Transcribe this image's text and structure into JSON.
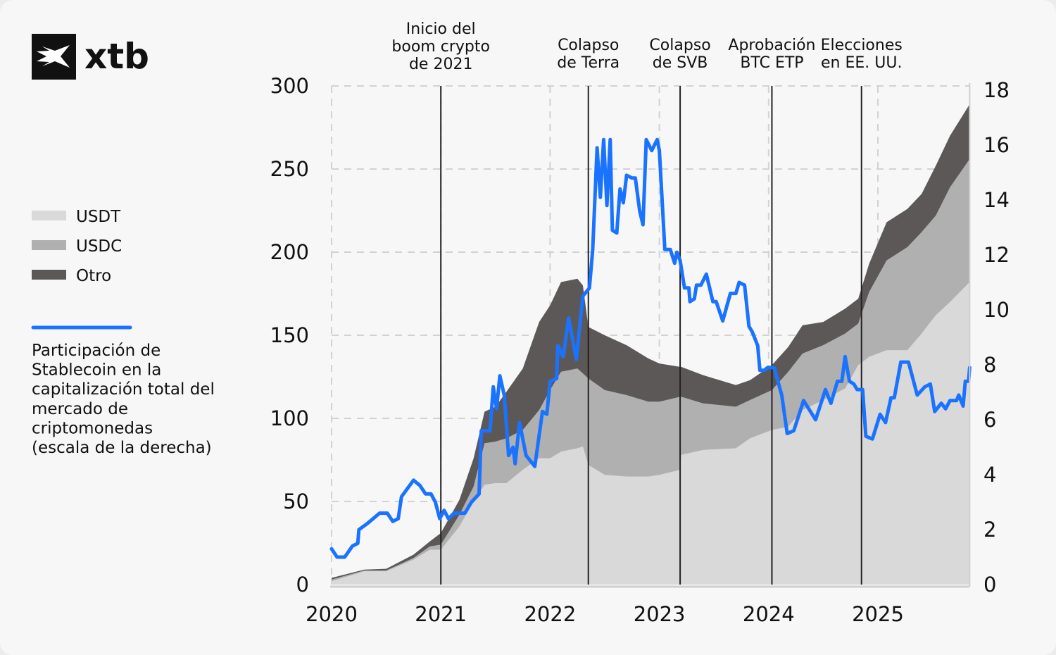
{
  "logo": {
    "text": "xtb"
  },
  "legend": {
    "items": [
      {
        "label": "USDT",
        "color": "#d9d9d9"
      },
      {
        "label": "USDC",
        "color": "#b0b0b0"
      },
      {
        "label": "Otro",
        "color": "#5c5857"
      }
    ],
    "line": {
      "color": "#1a73ff",
      "lines": [
        "Participación de",
        "Stablecoin en la",
        "capitalización total del",
        "mercado de",
        "criptomonedas",
        "(escala de la derecha)"
      ]
    }
  },
  "chart_data": {
    "type": "area",
    "stacked": true,
    "xlim": [
      2020,
      2025.84
    ],
    "ylim_left": [
      0,
      300
    ],
    "ylim_right": [
      0,
      18
    ],
    "x_ticks": [
      "2020",
      "2021",
      "2022",
      "2023",
      "2024",
      "2025"
    ],
    "y_ticks_left": [
      "0",
      "50",
      "100",
      "150",
      "200",
      "250",
      "300"
    ],
    "y_ticks_right": [
      "0",
      "2",
      "4",
      "6",
      "8",
      "10",
      "12",
      "14",
      "16",
      "18"
    ],
    "grid": true,
    "legend_position": "left",
    "x": [
      2020.0,
      2020.3,
      2020.5,
      2020.75,
      2020.9,
      2021.0,
      2021.17,
      2021.3,
      2021.4,
      2021.5,
      2021.6,
      2021.75,
      2021.9,
      2022.0,
      2022.1,
      2022.25,
      2022.3,
      2022.35,
      2022.5,
      2022.7,
      2022.9,
      2023.0,
      2023.19,
      2023.2,
      2023.4,
      2023.7,
      2023.83,
      2024.03,
      2024.18,
      2024.31,
      2024.5,
      2024.7,
      2024.82,
      2024.92,
      2025.08,
      2025.27,
      2025.4,
      2025.53,
      2025.66,
      2025.84
    ],
    "series": [
      {
        "name": "USDT",
        "color": "#d9d9d9",
        "values": [
          2,
          8,
          8,
          15,
          21,
          21,
          35,
          50,
          60,
          61,
          61,
          69,
          76,
          76,
          80,
          82,
          83,
          72,
          66,
          65,
          65,
          66,
          69,
          78,
          81,
          82,
          88,
          93,
          95,
          105,
          111,
          118,
          132,
          137,
          141,
          141,
          151,
          162,
          170,
          182
        ]
      },
      {
        "name": "USDC",
        "color": "#b0b0b0",
        "values": [
          1,
          0.5,
          0.5,
          1,
          2,
          3,
          7,
          9,
          25,
          25,
          27,
          24,
          29,
          41,
          48,
          48,
          44,
          52,
          51,
          49,
          45,
          44,
          44,
          35,
          28,
          25,
          23,
          24,
          33,
          34,
          33,
          33,
          25,
          39,
          54,
          62,
          61,
          60,
          69,
          74
        ]
      },
      {
        "name": "Otro",
        "color": "#5c5857",
        "values": [
          1,
          0.5,
          1,
          2,
          3,
          7,
          9,
          17,
          19,
          21,
          28,
          37,
          53,
          51,
          54,
          54,
          53,
          31,
          33,
          30,
          26,
          23,
          18,
          18,
          17,
          13,
          12,
          15,
          15,
          17,
          14,
          15,
          15,
          17,
          23,
          23,
          23,
          30,
          31,
          33
        ]
      }
    ],
    "line_series": {
      "axis": "right",
      "color": "#1a73ff",
      "points": [
        [
          2020.0,
          1.3
        ],
        [
          2020.05,
          1.0
        ],
        [
          2020.12,
          1.0
        ],
        [
          2020.19,
          1.4
        ],
        [
          2020.24,
          1.5
        ],
        [
          2020.25,
          2.0
        ],
        [
          2020.32,
          2.2
        ],
        [
          2020.38,
          2.4
        ],
        [
          2020.44,
          2.6
        ],
        [
          2020.51,
          2.6
        ],
        [
          2020.56,
          2.3
        ],
        [
          2020.61,
          2.4
        ],
        [
          2020.64,
          3.2
        ],
        [
          2020.75,
          3.8
        ],
        [
          2020.81,
          3.6
        ],
        [
          2020.86,
          3.3
        ],
        [
          2020.91,
          3.3
        ],
        [
          2020.95,
          3.0
        ],
        [
          2020.99,
          2.4
        ],
        [
          2021.03,
          2.7
        ],
        [
          2021.07,
          2.4
        ],
        [
          2021.12,
          2.6
        ],
        [
          2021.22,
          2.6
        ],
        [
          2021.28,
          3.0
        ],
        [
          2021.35,
          3.3
        ],
        [
          2021.37,
          5.6
        ],
        [
          2021.45,
          5.6
        ],
        [
          2021.48,
          7.2
        ],
        [
          2021.51,
          6.4
        ],
        [
          2021.54,
          7.6
        ],
        [
          2021.58,
          6.9
        ],
        [
          2021.62,
          4.7
        ],
        [
          2021.66,
          5.0
        ],
        [
          2021.68,
          4.4
        ],
        [
          2021.72,
          5.9
        ],
        [
          2021.78,
          4.7
        ],
        [
          2021.86,
          4.3
        ],
        [
          2021.93,
          6.3
        ],
        [
          2021.97,
          6.2
        ],
        [
          2022.0,
          7.4
        ],
        [
          2022.06,
          7.5
        ],
        [
          2022.07,
          8.7
        ],
        [
          2022.12,
          8.3
        ],
        [
          2022.17,
          9.7
        ],
        [
          2022.24,
          8.2
        ],
        [
          2022.3,
          10.5
        ],
        [
          2022.36,
          10.8
        ],
        [
          2022.39,
          12.2
        ],
        [
          2022.43,
          15.9
        ],
        [
          2022.46,
          14.1
        ],
        [
          2022.49,
          16.2
        ],
        [
          2022.52,
          13.8
        ],
        [
          2022.55,
          16.2
        ],
        [
          2022.57,
          12.9
        ],
        [
          2022.61,
          12.8
        ],
        [
          2022.64,
          14.4
        ],
        [
          2022.67,
          13.9
        ],
        [
          2022.7,
          14.9
        ],
        [
          2022.75,
          14.8
        ],
        [
          2022.78,
          14.8
        ],
        [
          2022.82,
          13.6
        ],
        [
          2022.85,
          13.1
        ],
        [
          2022.88,
          16.2
        ],
        [
          2022.93,
          15.8
        ],
        [
          2022.98,
          16.2
        ],
        [
          2023.0,
          15.8
        ],
        [
          2023.05,
          12.2
        ],
        [
          2023.1,
          12.2
        ],
        [
          2023.14,
          11.7
        ],
        [
          2023.16,
          12.1
        ],
        [
          2023.19,
          11.8
        ],
        [
          2023.23,
          10.8
        ],
        [
          2023.27,
          10.8
        ],
        [
          2023.28,
          10.3
        ],
        [
          2023.32,
          10.4
        ],
        [
          2023.34,
          10.9
        ],
        [
          2023.38,
          10.9
        ],
        [
          2023.43,
          11.3
        ],
        [
          2023.49,
          10.3
        ],
        [
          2023.52,
          10.3
        ],
        [
          2023.58,
          9.6
        ],
        [
          2023.65,
          10.6
        ],
        [
          2023.7,
          10.6
        ],
        [
          2023.73,
          11.0
        ],
        [
          2023.78,
          10.9
        ],
        [
          2023.82,
          9.4
        ],
        [
          2023.85,
          9.2
        ],
        [
          2023.9,
          8.7
        ],
        [
          2023.92,
          7.8
        ],
        [
          2023.96,
          7.8
        ],
        [
          2023.99,
          7.9
        ],
        [
          2024.05,
          7.9
        ],
        [
          2024.12,
          6.9
        ],
        [
          2024.17,
          5.5
        ],
        [
          2024.23,
          5.6
        ],
        [
          2024.32,
          6.7
        ],
        [
          2024.43,
          6.0
        ],
        [
          2024.52,
          7.1
        ],
        [
          2024.57,
          6.6
        ],
        [
          2024.63,
          7.4
        ],
        [
          2024.67,
          7.4
        ],
        [
          2024.7,
          8.3
        ],
        [
          2024.74,
          7.4
        ],
        [
          2024.78,
          7.3
        ],
        [
          2024.81,
          7.1
        ],
        [
          2024.86,
          7.1
        ],
        [
          2024.89,
          5.4
        ],
        [
          2024.95,
          5.3
        ],
        [
          2025.02,
          6.2
        ],
        [
          2025.07,
          5.9
        ],
        [
          2025.12,
          6.8
        ],
        [
          2025.15,
          6.8
        ],
        [
          2025.21,
          8.1
        ],
        [
          2025.28,
          8.1
        ],
        [
          2025.36,
          6.9
        ],
        [
          2025.43,
          7.2
        ],
        [
          2025.48,
          7.3
        ],
        [
          2025.52,
          6.3
        ],
        [
          2025.58,
          6.6
        ],
        [
          2025.62,
          6.4
        ],
        [
          2025.66,
          6.7
        ],
        [
          2025.72,
          6.7
        ],
        [
          2025.74,
          6.9
        ],
        [
          2025.78,
          6.5
        ],
        [
          2025.8,
          7.4
        ],
        [
          2025.83,
          7.4
        ],
        [
          2025.84,
          7.9
        ]
      ]
    },
    "annotations": [
      {
        "x": 2021.0,
        "lines": [
          "Inicio del",
          "boom crypto",
          "de 2021"
        ]
      },
      {
        "x": 2022.35,
        "lines": [
          "Colapso",
          "de Terra"
        ]
      },
      {
        "x": 2023.19,
        "lines": [
          "Colapso",
          "de SVB"
        ]
      },
      {
        "x": 2024.03,
        "lines": [
          "Aprobación",
          "BTC ETP"
        ]
      },
      {
        "x": 2024.85,
        "lines": [
          "Elecciones",
          "en EE. UU."
        ]
      }
    ]
  }
}
